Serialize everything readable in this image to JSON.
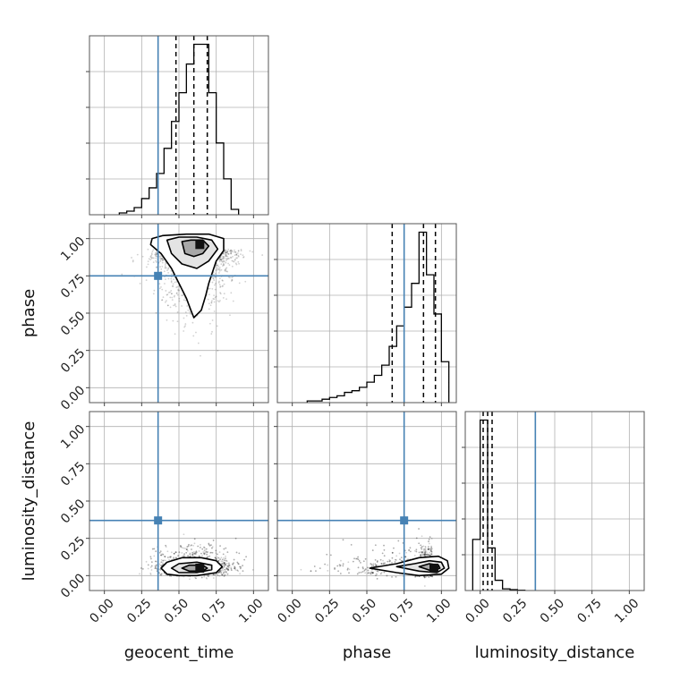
{
  "chart_data": {
    "type": "corner",
    "parameters": [
      "geocent_time",
      "phase",
      "luminosity_distance"
    ],
    "axis_ranges": {
      "geocent_time": [
        -0.1,
        1.1
      ],
      "phase": [
        -0.1,
        1.1
      ],
      "luminosity_distance": [
        -0.1,
        1.1
      ]
    },
    "ticks": [
      0.0,
      0.25,
      0.5,
      0.75,
      1.0
    ],
    "tick_labels": [
      "0.00",
      "0.25",
      "0.50",
      "0.75",
      "1.00"
    ],
    "grid": true,
    "truth_color": "#4682b4",
    "truths": {
      "geocent_time": 0.36,
      "phase": 0.75,
      "luminosity_distance": 0.37
    },
    "quantiles": {
      "geocent_time": [
        0.48,
        0.6,
        0.69
      ],
      "phase": [
        0.67,
        0.88,
        0.96
      ],
      "luminosity_distance": [
        0.02,
        0.05,
        0.08
      ]
    },
    "histograms": {
      "geocent_time": {
        "bin_edges": [
          0.1,
          0.15,
          0.2,
          0.25,
          0.3,
          0.35,
          0.4,
          0.45,
          0.5,
          0.55,
          0.6,
          0.65,
          0.7,
          0.75,
          0.8,
          0.85,
          0.9
        ],
        "counts": [
          1,
          2,
          4,
          9,
          15,
          23,
          37,
          52,
          68,
          84,
          95,
          95,
          68,
          40,
          20,
          3
        ]
      },
      "phase": {
        "bin_edges": [
          0.1,
          0.15,
          0.2,
          0.25,
          0.3,
          0.35,
          0.4,
          0.45,
          0.5,
          0.55,
          0.6,
          0.65,
          0.7,
          0.75,
          0.8,
          0.85,
          0.9,
          0.95,
          1.0,
          1.05
        ],
        "counts": [
          1,
          1,
          2,
          3,
          4,
          6,
          7,
          9,
          12,
          16,
          22,
          33,
          45,
          56,
          70,
          100,
          75,
          52,
          24
        ]
      },
      "luminosity_distance": {
        "bin_edges": [
          -0.05,
          0.0,
          0.05,
          0.1,
          0.15,
          0.2,
          0.25,
          0.3
        ],
        "counts": [
          30,
          100,
          25,
          6,
          1,
          0.5,
          0.2
        ]
      }
    },
    "scatter_2d": [
      {
        "x_param": "geocent_time",
        "y_param": "phase",
        "points": {
          "x_mean": 0.6,
          "x_sd": 0.12,
          "y_mode": 0.93,
          "y_tail": 0.4,
          "n": 2200
        },
        "contours": [
          [
            [
              0.32,
              1.0
            ],
            [
              0.39,
              1.02
            ],
            [
              0.55,
              1.03
            ],
            [
              0.7,
              1.03
            ],
            [
              0.8,
              1.0
            ],
            [
              0.8,
              0.92
            ],
            [
              0.75,
              0.85
            ],
            [
              0.7,
              0.7
            ],
            [
              0.68,
              0.62
            ],
            [
              0.65,
              0.52
            ],
            [
              0.6,
              0.47
            ],
            [
              0.58,
              0.52
            ],
            [
              0.55,
              0.6
            ],
            [
              0.5,
              0.7
            ],
            [
              0.45,
              0.8
            ],
            [
              0.38,
              0.9
            ],
            [
              0.31,
              0.96
            ],
            [
              0.32,
              1.0
            ]
          ],
          [
            [
              0.42,
              0.99
            ],
            [
              0.5,
              1.01
            ],
            [
              0.62,
              1.01
            ],
            [
              0.72,
              0.99
            ],
            [
              0.76,
              0.93
            ],
            [
              0.7,
              0.85
            ],
            [
              0.62,
              0.8
            ],
            [
              0.52,
              0.83
            ],
            [
              0.45,
              0.9
            ],
            [
              0.42,
              0.99
            ]
          ],
          [
            [
              0.52,
              0.98
            ],
            [
              0.58,
              0.99
            ],
            [
              0.66,
              0.99
            ],
            [
              0.7,
              0.95
            ],
            [
              0.66,
              0.9
            ],
            [
              0.6,
              0.88
            ],
            [
              0.54,
              0.9
            ],
            [
              0.52,
              0.98
            ]
          ]
        ],
        "peak": [
          0.64,
          0.96
        ]
      },
      {
        "x_param": "geocent_time",
        "y_param": "luminosity_distance",
        "points": {
          "x_mean": 0.6,
          "x_sd": 0.12,
          "y_mode": 0.05,
          "y_tail": 0.15,
          "n": 2200
        },
        "contours": [
          [
            [
              0.38,
              0.05
            ],
            [
              0.42,
              0.09
            ],
            [
              0.52,
              0.12
            ],
            [
              0.65,
              0.12
            ],
            [
              0.75,
              0.1
            ],
            [
              0.79,
              0.06
            ],
            [
              0.75,
              0.02
            ],
            [
              0.62,
              0.0
            ],
            [
              0.5,
              0.0
            ],
            [
              0.42,
              0.01
            ],
            [
              0.38,
              0.05
            ]
          ],
          [
            [
              0.45,
              0.05
            ],
            [
              0.5,
              0.08
            ],
            [
              0.62,
              0.09
            ],
            [
              0.72,
              0.07
            ],
            [
              0.72,
              0.04
            ],
            [
              0.62,
              0.02
            ],
            [
              0.5,
              0.02
            ],
            [
              0.45,
              0.05
            ]
          ],
          [
            [
              0.52,
              0.05
            ],
            [
              0.57,
              0.07
            ],
            [
              0.66,
              0.07
            ],
            [
              0.69,
              0.05
            ],
            [
              0.66,
              0.03
            ],
            [
              0.57,
              0.03
            ],
            [
              0.52,
              0.05
            ]
          ]
        ],
        "peak": [
          0.64,
          0.05
        ]
      },
      {
        "x_param": "phase",
        "y_param": "luminosity_distance",
        "points": {
          "x_mode": 0.94,
          "x_tail": 0.6,
          "y_mode": 0.05,
          "y_tail": 0.15,
          "n": 2200
        },
        "contours": [
          [
            [
              0.52,
              0.05
            ],
            [
              0.7,
              0.08
            ],
            [
              0.85,
              0.12
            ],
            [
              0.98,
              0.13
            ],
            [
              1.04,
              0.1
            ],
            [
              1.05,
              0.05
            ],
            [
              1.0,
              0.01
            ],
            [
              0.85,
              0.0
            ],
            [
              0.7,
              0.02
            ],
            [
              0.52,
              0.05
            ]
          ],
          [
            [
              0.7,
              0.06
            ],
            [
              0.82,
              0.08
            ],
            [
              0.92,
              0.1
            ],
            [
              1.0,
              0.09
            ],
            [
              1.02,
              0.05
            ],
            [
              0.97,
              0.02
            ],
            [
              0.85,
              0.03
            ],
            [
              0.7,
              0.06
            ]
          ],
          [
            [
              0.85,
              0.06
            ],
            [
              0.92,
              0.08
            ],
            [
              0.98,
              0.07
            ],
            [
              0.99,
              0.05
            ],
            [
              0.94,
              0.03
            ],
            [
              0.85,
              0.06
            ]
          ]
        ],
        "peak": [
          0.95,
          0.05
        ]
      }
    ]
  }
}
